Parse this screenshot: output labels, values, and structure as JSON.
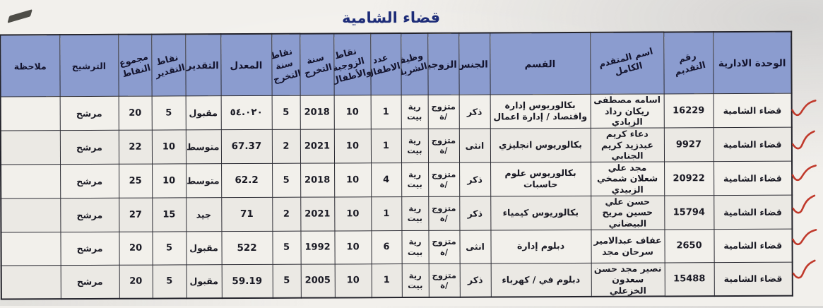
{
  "title": "قضاء الشامية",
  "colors": {
    "header_bg": "#8b9ccf",
    "title_text": "#1d2c78",
    "check_mark": "#c0392b",
    "border": "#2b2b33"
  },
  "table": {
    "headers": [
      {
        "key": "unit",
        "label": "الوحدة الادارية"
      },
      {
        "key": "app_no",
        "label": "رقم\nالتقديم"
      },
      {
        "key": "name",
        "label": "اسم المتقدم الكامل"
      },
      {
        "key": "dept",
        "label": "القسم"
      },
      {
        "key": "gender",
        "label": "الجنس"
      },
      {
        "key": "marital",
        "label": "الزوجية"
      },
      {
        "key": "partner_job",
        "label": "وظيفة\nالشريك"
      },
      {
        "key": "children",
        "label": "عدد\nالاطفال"
      },
      {
        "key": "marriage_points",
        "label": "نقاط\nالزوجية\nوالأطفال"
      },
      {
        "key": "grad_year",
        "label": "سنة\nالتخرج"
      },
      {
        "key": "grad_points",
        "label": "نقاط\nسنة\nالتخرج"
      },
      {
        "key": "average",
        "label": "المعدل"
      },
      {
        "key": "grade",
        "label": "التقدير"
      },
      {
        "key": "grade_points",
        "label": "نقاط\nالتقدير"
      },
      {
        "key": "total",
        "label": "مجموع\nالنقاط"
      },
      {
        "key": "nomination",
        "label": "الترشيح"
      },
      {
        "key": "note",
        "label": "ملاحظة"
      }
    ],
    "rows": [
      {
        "unit": "قضاء الشامية",
        "app_no": "16229",
        "name": "اسامه مصطفى ريكان رداد الزيادي",
        "dept": "بكالوريوس إدارة واقتصاد / إدارة اعمال",
        "gender": "ذكر",
        "marital": "متزوج\n/ة",
        "partner_job": "رية\nبيت",
        "children": "1",
        "marriage_points": "10",
        "grad_year": "2018",
        "grad_points": "5",
        "average": "٥٤.٠٢٠",
        "grade": "مقبول",
        "grade_points": "5",
        "total": "20",
        "nomination": "مرشح",
        "note": ""
      },
      {
        "unit": "قضاء الشامية",
        "app_no": "9927",
        "name": "دعاء كريم عبدزيد كريم الجنابي",
        "dept": "بكالوريوس انجليزي",
        "gender": "انثى",
        "marital": "متزوج\n/ة",
        "partner_job": "رية\nبيت",
        "children": "1",
        "marriage_points": "10",
        "grad_year": "2021",
        "grad_points": "2",
        "average": "67.37",
        "grade": "متوسط",
        "grade_points": "10",
        "total": "22",
        "nomination": "مرشح",
        "note": ""
      },
      {
        "unit": "قضاء الشامية",
        "app_no": "20922",
        "name": "مجد علي شعلان شمخي الزبيدي",
        "dept": "بكالوريوس علوم حاسبات",
        "gender": "ذكر",
        "marital": "متزوج\n/ة",
        "partner_job": "رية\nبيت",
        "children": "4",
        "marriage_points": "10",
        "grad_year": "2018",
        "grad_points": "5",
        "average": "62.2",
        "grade": "متوسط",
        "grade_points": "10",
        "total": "25",
        "nomination": "مرشح",
        "note": ""
      },
      {
        "unit": "قضاء الشامية",
        "app_no": "15794",
        "name": "حسن علي حسين مريح البيضاني",
        "dept": "بكالوريوس كيمياء",
        "gender": "ذكر",
        "marital": "متزوج\n/ة",
        "partner_job": "رية\nبيت",
        "children": "1",
        "marriage_points": "10",
        "grad_year": "2021",
        "grad_points": "2",
        "average": "71",
        "grade": "جيد",
        "grade_points": "15",
        "total": "27",
        "nomination": "مرشح",
        "note": ""
      },
      {
        "unit": "قضاء الشامية",
        "app_no": "2650",
        "name": "عفاف عبدالامير سرحان مجد",
        "dept": "دبلوم إدارة",
        "gender": "انثى",
        "marital": "متزوج\n/ة",
        "partner_job": "رية\nبيت",
        "children": "6",
        "marriage_points": "10",
        "grad_year": "1992",
        "grad_points": "5",
        "average": "522",
        "grade": "مقبول",
        "grade_points": "5",
        "total": "20",
        "nomination": "مرشح",
        "note": ""
      },
      {
        "unit": "قضاء الشامية",
        "app_no": "15488",
        "name": "نصير مجد حسن سعدون الخزعلي",
        "dept": "دبلوم في / كهرباء",
        "gender": "ذكر",
        "marital": "متزوج\n/ة",
        "partner_job": "رية\nبيت",
        "children": "1",
        "marriage_points": "10",
        "grad_year": "2005",
        "grad_points": "5",
        "average": "59.19",
        "grade": "مقبول",
        "grade_points": "5",
        "total": "20",
        "nomination": "مرشح",
        "note": ""
      }
    ]
  }
}
